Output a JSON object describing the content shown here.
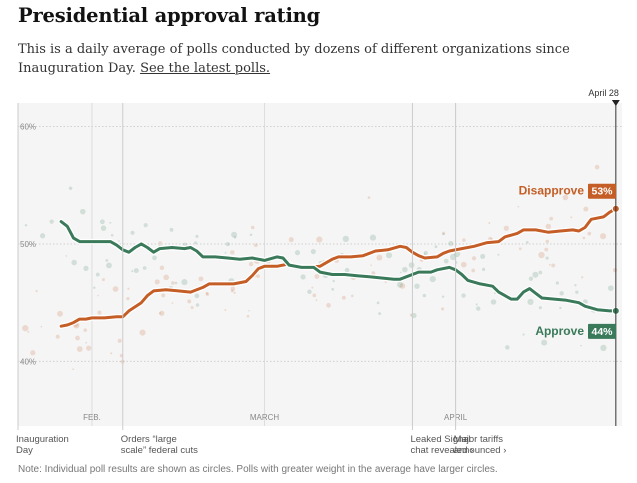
{
  "title": "Presidential approval rating",
  "subtitle_text": "This is a daily average of polls conducted by dozens of different organizations since Inauguration Day.",
  "subtitle_link": "See the latest polls.",
  "note": "Note: Individual poll results are shown as circles. Polls with greater weight in the average have larger circles.",
  "colors": {
    "disapprove": "#c45e26",
    "approve": "#3a7a5a",
    "background": "#f5f5f5"
  },
  "chart_data": {
    "type": "line",
    "x_start": "Jan 20",
    "x_end": "April 28",
    "end_label": "April 28",
    "x_ticks": [
      {
        "day": 12,
        "label": "FEB."
      },
      {
        "day": 40,
        "label": "MARCH"
      },
      {
        "day": 71,
        "label": "APRIL"
      }
    ],
    "y_ticks": [
      {
        "value": 60,
        "label": "60%"
      },
      {
        "value": 50,
        "label": "50%"
      },
      {
        "value": 40,
        "label": "40%"
      }
    ],
    "ylim": [
      34.5,
      62
    ],
    "xlim": [
      0,
      98
    ],
    "grid": true,
    "annotations": [
      {
        "day": 0,
        "lines": [
          "Inauguration",
          "Day"
        ]
      },
      {
        "day": 17,
        "lines": [
          "Orders “large",
          "scale” federal cuts"
        ]
      },
      {
        "day": 64,
        "lines": [
          "Leaked Signal",
          "chat revealed ›"
        ]
      },
      {
        "day": 71,
        "lines": [
          "Major tariffs",
          "announced ›"
        ]
      }
    ],
    "series": [
      {
        "name": "Disapprove",
        "final_label": "53%",
        "points": [
          [
            7,
            43
          ],
          [
            8,
            43.1
          ],
          [
            9,
            43.3
          ],
          [
            10,
            43.6
          ],
          [
            11,
            43.6
          ],
          [
            12,
            43.7
          ],
          [
            14,
            43.7
          ],
          [
            16,
            43.8
          ],
          [
            17,
            43.8
          ],
          [
            18,
            44.3
          ],
          [
            20,
            45
          ],
          [
            21,
            45.6
          ],
          [
            22,
            46
          ],
          [
            24,
            46.1
          ],
          [
            26,
            46
          ],
          [
            28,
            45.9
          ],
          [
            30,
            46.3
          ],
          [
            31,
            46.6
          ],
          [
            33,
            46.6
          ],
          [
            35,
            46.6
          ],
          [
            37,
            46.8
          ],
          [
            38,
            47.3
          ],
          [
            39,
            47.9
          ],
          [
            40,
            48.1
          ],
          [
            42,
            48.1
          ],
          [
            44,
            48.3
          ],
          [
            45,
            48.1
          ],
          [
            47,
            48
          ],
          [
            49,
            48.1
          ],
          [
            51,
            48.7
          ],
          [
            52,
            48.9
          ],
          [
            54,
            48.9
          ],
          [
            56,
            49
          ],
          [
            58,
            49.4
          ],
          [
            60,
            49.5
          ],
          [
            62,
            49.8
          ],
          [
            63,
            49.7
          ],
          [
            64,
            49.3
          ],
          [
            65,
            49
          ],
          [
            66,
            48.8
          ],
          [
            68,
            48.9
          ],
          [
            69,
            49.2
          ],
          [
            70,
            49.4
          ],
          [
            72,
            49.6
          ],
          [
            74,
            49.8
          ],
          [
            76,
            50.1
          ],
          [
            78,
            50.2
          ],
          [
            79,
            50.6
          ],
          [
            81,
            50.9
          ],
          [
            82,
            51.2
          ],
          [
            84,
            51.2
          ],
          [
            86,
            51
          ],
          [
            88,
            51.1
          ],
          [
            90,
            51.2
          ],
          [
            91,
            51.1
          ],
          [
            92,
            51.4
          ],
          [
            93,
            52.1
          ],
          [
            95,
            52.3
          ],
          [
            96,
            52.7
          ],
          [
            97,
            53
          ]
        ]
      },
      {
        "name": "Approve",
        "final_label": "44%",
        "points": [
          [
            7,
            51.9
          ],
          [
            8,
            51.5
          ],
          [
            9,
            50.5
          ],
          [
            10,
            50.2
          ],
          [
            11,
            50.2
          ],
          [
            13,
            50.2
          ],
          [
            15,
            50.2
          ],
          [
            16,
            49.9
          ],
          [
            17,
            49.5
          ],
          [
            18,
            49.3
          ],
          [
            19,
            49.7
          ],
          [
            20,
            50
          ],
          [
            21,
            49.7
          ],
          [
            22,
            49.3
          ],
          [
            23,
            49.6
          ],
          [
            25,
            49.7
          ],
          [
            27,
            49.6
          ],
          [
            28,
            49.7
          ],
          [
            29,
            49.4
          ],
          [
            30,
            48.9
          ],
          [
            32,
            48.9
          ],
          [
            34,
            48.8
          ],
          [
            36,
            48.7
          ],
          [
            38,
            48.8
          ],
          [
            40,
            48.6
          ],
          [
            42,
            48.9
          ],
          [
            43,
            48.8
          ],
          [
            44,
            48.2
          ],
          [
            46,
            48
          ],
          [
            48,
            48
          ],
          [
            49,
            47.6
          ],
          [
            51,
            47.4
          ],
          [
            53,
            47.4
          ],
          [
            55,
            47.3
          ],
          [
            57,
            47.2
          ],
          [
            59,
            47.1
          ],
          [
            61,
            47
          ],
          [
            62,
            47
          ],
          [
            63,
            47.2
          ],
          [
            65,
            47.6
          ],
          [
            67,
            47.6
          ],
          [
            68,
            47.8
          ],
          [
            70,
            48
          ],
          [
            71,
            47.8
          ],
          [
            72,
            47.4
          ],
          [
            73,
            46.9
          ],
          [
            75,
            46.6
          ],
          [
            77,
            46.4
          ],
          [
            78,
            45.9
          ],
          [
            79,
            45.6
          ],
          [
            80,
            45.3
          ],
          [
            81,
            45.3
          ],
          [
            82,
            45.9
          ],
          [
            83,
            46.2
          ],
          [
            84,
            45.8
          ],
          [
            85,
            45.4
          ],
          [
            87,
            45.3
          ],
          [
            89,
            45.2
          ],
          [
            91,
            45
          ],
          [
            92,
            44.7
          ],
          [
            94,
            44.4
          ],
          [
            96,
            44.3
          ],
          [
            97,
            44.3
          ]
        ]
      }
    ]
  }
}
